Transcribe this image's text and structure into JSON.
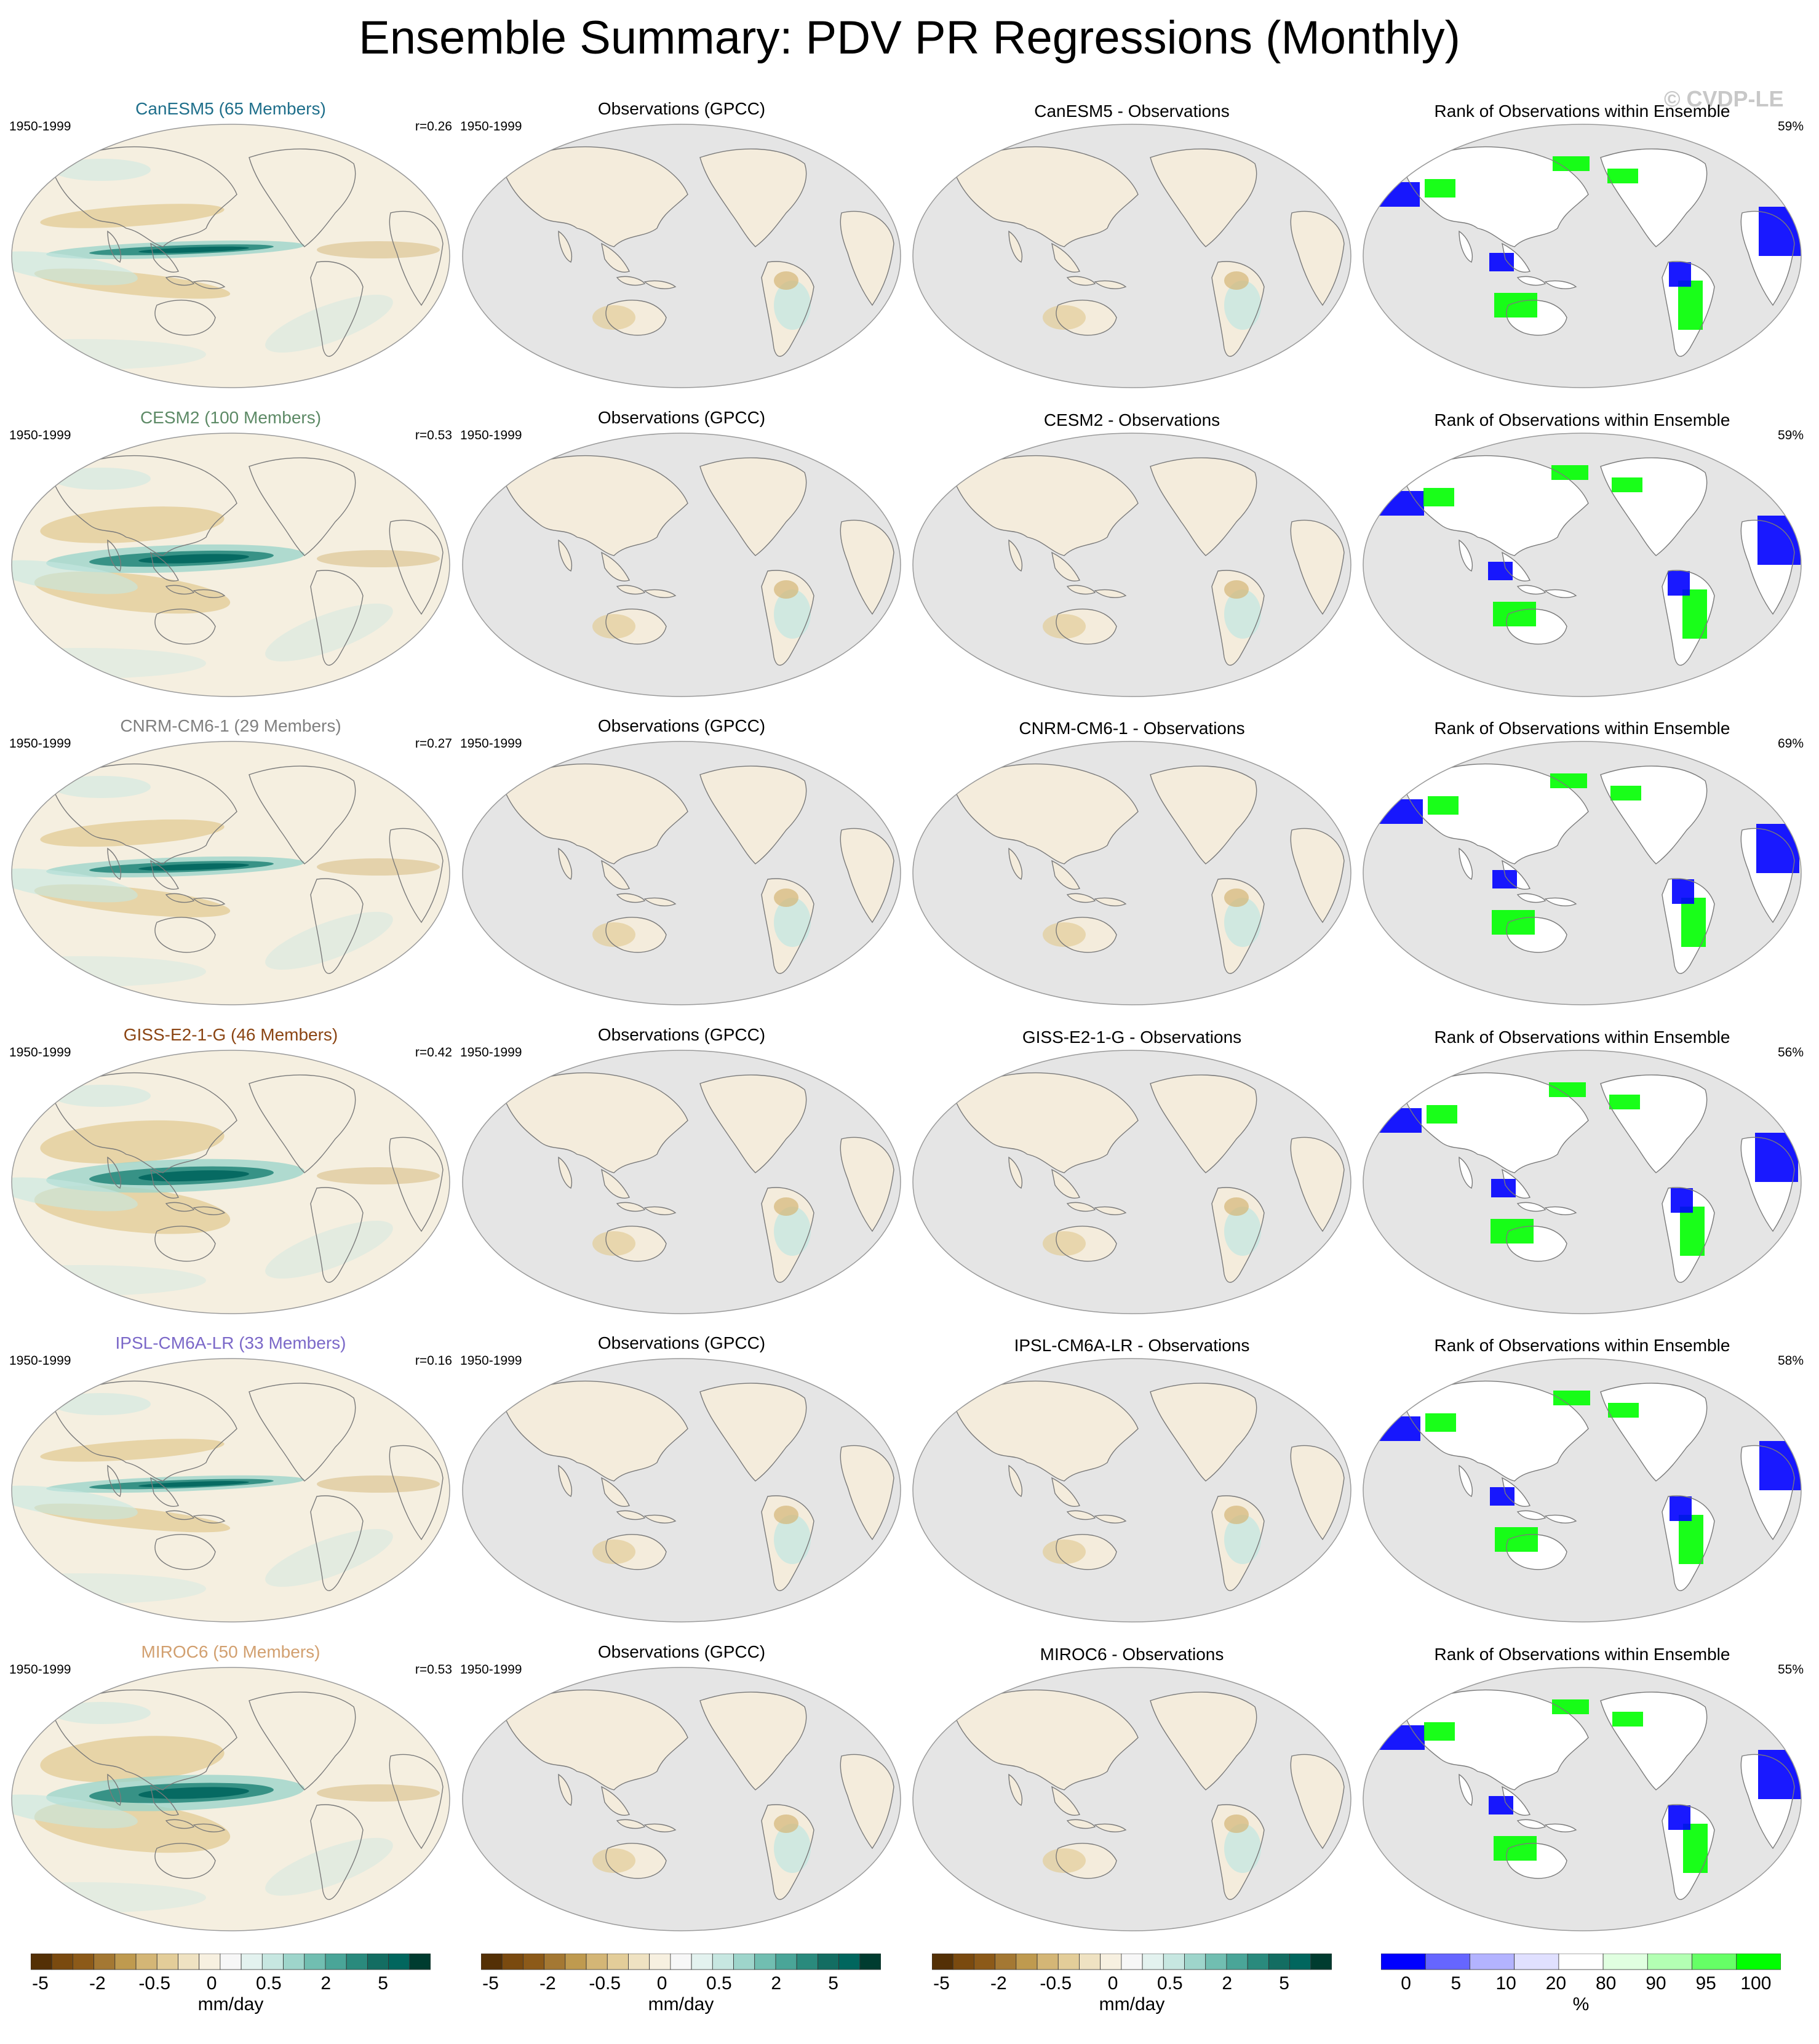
{
  "title": "Ensemble Summary: PDV PR Regressions (Monthly)",
  "watermark": "© CVDP-LE",
  "period": "1950-1999",
  "obs_title": "Observations (GPCC)",
  "rank_title": "Rank of Observations within Ensemble",
  "rows": [
    {
      "model": "CanESM5 (65 Members)",
      "model_color": "#1f6f8b",
      "r": "r=0.26",
      "diff_title": "CanESM5 - Observations",
      "rank_pct": "59%"
    },
    {
      "model": "CESM2 (100 Members)",
      "model_color": "#5d8a66",
      "r": "r=0.53",
      "diff_title": "CESM2 - Observations",
      "rank_pct": "59%"
    },
    {
      "model": "CNRM-CM6-1 (29 Members)",
      "model_color": "#808080",
      "r": "r=0.27",
      "diff_title": "CNRM-CM6-1 - Observations",
      "rank_pct": "69%"
    },
    {
      "model": "GISS-E2-1-G (46 Members)",
      "model_color": "#8b4513",
      "r": "r=0.42",
      "diff_title": "GISS-E2-1-G - Observations",
      "rank_pct": "56%"
    },
    {
      "model": "IPSL-CM6A-LR (33 Members)",
      "model_color": "#7b68c8",
      "r": "r=0.16",
      "diff_title": "IPSL-CM6A-LR - Observations",
      "rank_pct": "58%"
    },
    {
      "model": "MIROC6 (50 Members)",
      "model_color": "#d2a070",
      "r": "r=0.53",
      "diff_title": "MIROC6 - Observations",
      "rank_pct": "55%"
    }
  ],
  "colorbars": [
    {
      "ticks": [
        "-5",
        "-2",
        "-0.5",
        "0",
        "0.5",
        "2",
        "5"
      ],
      "label": "mm/day"
    },
    {
      "ticks": [
        "-5",
        "-2",
        "-0.5",
        "0",
        "0.5",
        "2",
        "5"
      ],
      "label": "mm/day"
    },
    {
      "ticks": [
        "-5",
        "-2",
        "-0.5",
        "0",
        "0.5",
        "2",
        "5"
      ],
      "label": "mm/day"
    },
    {
      "ticks": [
        "0",
        "5",
        "10",
        "20",
        "80",
        "90",
        "95",
        "100"
      ],
      "label": "%"
    }
  ],
  "colors": {
    "brown_teal": [
      "#543005",
      "#7a4a0f",
      "#8c5a19",
      "#a47833",
      "#bf9a4f",
      "#d4b676",
      "#e3cd99",
      "#efe2c2",
      "#f7f0e0",
      "#f7f7f7",
      "#e3f2ef",
      "#c7e7e1",
      "#9ed5cb",
      "#71beb1",
      "#4aa598",
      "#2a8a7d",
      "#136d62",
      "#01665e",
      "#003c30"
    ],
    "rank": [
      "#0000ff",
      "#6666ff",
      "#b3b3ff",
      "#e0e0ff",
      "#ffffff",
      "#e0ffe0",
      "#b3ffb3",
      "#66ff66",
      "#00ff00"
    ],
    "land_gray": "#e5e5e5",
    "coast": "#7a7a7a"
  }
}
